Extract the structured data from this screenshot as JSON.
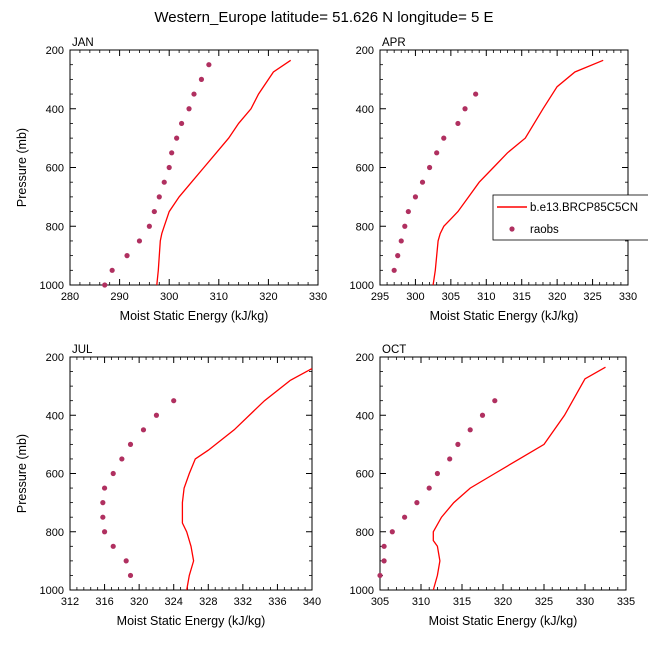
{
  "figure_title": "Western_Europe  latitude= 51.626 N longitude= 5 E",
  "colors": {
    "model_line": "#ff0000",
    "obs_marker": "#b03060",
    "axes": "#000000"
  },
  "legend": {
    "placement": "between-top-panels-right",
    "model_label": "b.e13.BRCP85C5CN",
    "obs_label": "raobs"
  },
  "chart_data": [
    {
      "type": "line+scatter",
      "panel_label": "JAN",
      "xlabel": "Moist Static Energy (kJ/kg)",
      "ylabel": "Pressure (mb)",
      "xlim": [
        280,
        330
      ],
      "ylim": [
        1000,
        200
      ],
      "xticks": [
        280,
        290,
        300,
        310,
        320,
        330
      ],
      "yticks": [
        200,
        400,
        600,
        800,
        1000
      ],
      "series": [
        {
          "name": "b.e13.BRCP85C5CN",
          "kind": "line",
          "x": [
            297.5,
            297.8,
            298.0,
            298.2,
            298.5,
            299.0,
            300.0,
            302.0,
            304.5,
            307.0,
            309.5,
            312.0,
            314.0,
            316.5,
            318.0,
            321.0,
            324.5
          ],
          "y": [
            1000,
            950,
            900,
            850,
            825,
            800,
            750,
            700,
            650,
            600,
            550,
            500,
            450,
            400,
            350,
            275,
            235
          ]
        },
        {
          "name": "raobs",
          "kind": "scatter",
          "x": [
            287.0,
            288.5,
            291.5,
            294.0,
            296.0,
            297.0,
            298.0,
            299.0,
            300.0,
            300.5,
            301.5,
            302.5,
            304.0,
            305.0,
            306.5,
            308.0
          ],
          "y": [
            1000,
            950,
            900,
            850,
            800,
            750,
            700,
            650,
            600,
            550,
            500,
            450,
            400,
            350,
            300,
            250
          ]
        }
      ]
    },
    {
      "type": "line+scatter",
      "panel_label": "APR",
      "xlabel": "Moist Static Energy (kJ/kg)",
      "ylabel": "",
      "xlim": [
        295,
        330
      ],
      "ylim": [
        1000,
        200
      ],
      "xticks": [
        295,
        300,
        305,
        310,
        315,
        320,
        325,
        330
      ],
      "yticks": [
        200,
        400,
        600,
        800,
        1000
      ],
      "series": [
        {
          "name": "b.e13.BRCP85C5CN",
          "kind": "line",
          "x": [
            302.5,
            302.8,
            303.0,
            303.2,
            303.5,
            304.0,
            305.0,
            306.0,
            307.5,
            309.0,
            311.0,
            313.0,
            315.5,
            318.0,
            320.0,
            322.5,
            326.5
          ],
          "y": [
            1000,
            950,
            900,
            850,
            825,
            800,
            775,
            750,
            700,
            650,
            600,
            550,
            500,
            400,
            325,
            275,
            235
          ]
        },
        {
          "name": "raobs",
          "kind": "scatter",
          "x": [
            297.0,
            297.5,
            298.0,
            298.5,
            299.0,
            300.0,
            301.0,
            302.0,
            303.0,
            304.0,
            306.0,
            307.0,
            308.5
          ],
          "y": [
            950,
            900,
            850,
            800,
            750,
            700,
            650,
            600,
            550,
            500,
            450,
            400,
            350
          ]
        }
      ]
    },
    {
      "type": "line+scatter",
      "panel_label": "JUL",
      "xlabel": "Moist Static Energy (kJ/kg)",
      "ylabel": "Pressure (mb)",
      "xlim": [
        312,
        340
      ],
      "ylim": [
        1000,
        200
      ],
      "xticks": [
        312,
        316,
        320,
        324,
        328,
        332,
        336,
        340
      ],
      "yticks": [
        200,
        400,
        600,
        800,
        1000
      ],
      "series": [
        {
          "name": "b.e13.BRCP85C5CN",
          "kind": "line",
          "x": [
            325.5,
            325.8,
            326.3,
            326.0,
            325.5,
            325.0,
            325.0,
            325.2,
            325.8,
            326.5,
            328.0,
            331.0,
            334.5,
            337.5,
            340.0
          ],
          "y": [
            1000,
            950,
            900,
            850,
            800,
            770,
            700,
            650,
            600,
            550,
            520,
            450,
            350,
            280,
            240
          ]
        },
        {
          "name": "raobs",
          "kind": "scatter",
          "x": [
            319.0,
            318.5,
            317.0,
            316.0,
            315.8,
            315.8,
            316.0,
            317.0,
            318.0,
            319.0,
            320.5,
            322.0,
            324.0
          ],
          "y": [
            950,
            900,
            850,
            800,
            750,
            700,
            650,
            600,
            550,
            500,
            450,
            400,
            350
          ]
        }
      ]
    },
    {
      "type": "line+scatter",
      "panel_label": "OCT",
      "xlabel": "Moist Static Energy (kJ/kg)",
      "ylabel": "",
      "xlim": [
        305,
        335
      ],
      "ylim": [
        1000,
        200
      ],
      "xticks": [
        305,
        310,
        315,
        320,
        325,
        330,
        335
      ],
      "yticks": [
        200,
        400,
        600,
        800,
        1000
      ],
      "series": [
        {
          "name": "b.e13.BRCP85C5CN",
          "kind": "line",
          "x": [
            311.5,
            312.0,
            312.3,
            312.0,
            311.5,
            311.5,
            312.5,
            314.0,
            316.0,
            319.0,
            322.0,
            325.0,
            327.5,
            330.0,
            332.5
          ],
          "y": [
            1000,
            950,
            900,
            850,
            830,
            800,
            750,
            700,
            650,
            600,
            550,
            500,
            400,
            275,
            235
          ]
        },
        {
          "name": "raobs",
          "kind": "scatter",
          "x": [
            305.0,
            305.5,
            305.5,
            306.5,
            308.0,
            309.5,
            311.0,
            312.0,
            313.5,
            314.5,
            316.0,
            317.5,
            319.0
          ],
          "y": [
            950,
            900,
            850,
            800,
            750,
            700,
            650,
            600,
            550,
            500,
            450,
            400,
            350
          ]
        }
      ]
    }
  ]
}
